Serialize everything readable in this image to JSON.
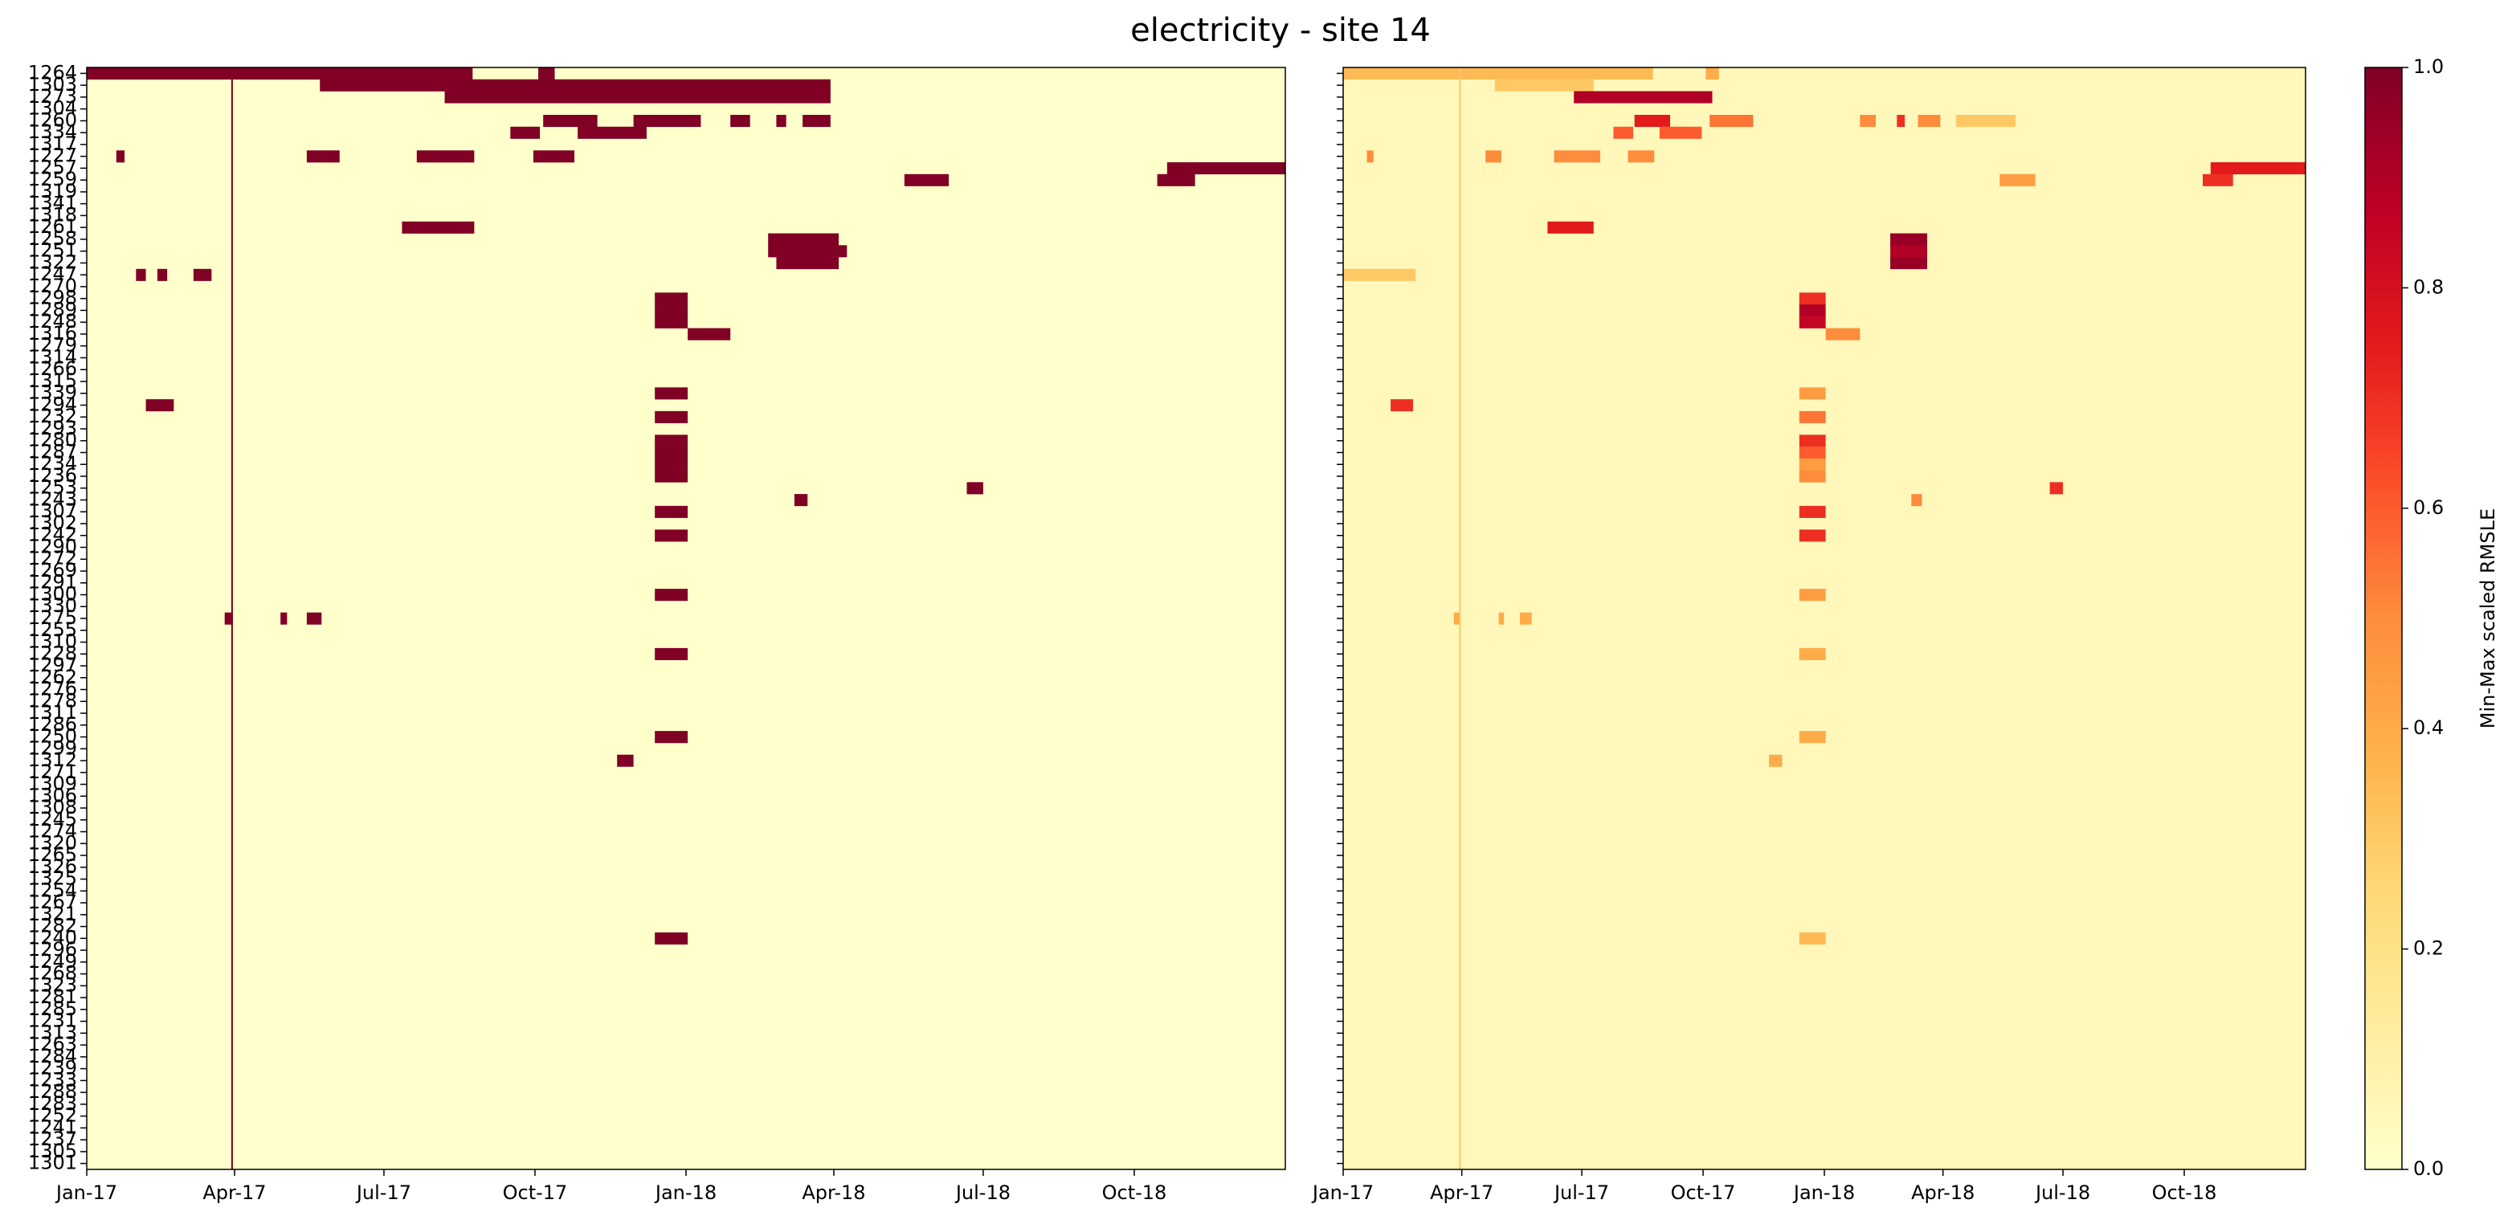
{
  "chart_data": [
    {
      "type": "heatmap",
      "title": "electricity - site 14",
      "rows": [
        "1264",
        "1303",
        "1273",
        "1304",
        "1260",
        "1334",
        "1317",
        "1227",
        "1257",
        "1259",
        "1319",
        "1341",
        "1318",
        "1261",
        "1258",
        "1251",
        "1322",
        "1247",
        "1270",
        "1298",
        "1289",
        "1248",
        "1316",
        "1279",
        "1314",
        "1266",
        "1315",
        "1339",
        "1294",
        "1232",
        "1293",
        "1280",
        "1287",
        "1234",
        "1236",
        "1253",
        "1243",
        "1307",
        "1302",
        "1242",
        "1290",
        "1272",
        "1269",
        "1291",
        "1300",
        "1330",
        "1275",
        "1255",
        "1310",
        "1228",
        "1297",
        "1262",
        "1276",
        "1278",
        "1311",
        "1286",
        "1250",
        "1299",
        "1312",
        "1271",
        "1309",
        "1306",
        "1308",
        "1245",
        "1274",
        "1320",
        "1265",
        "1326",
        "1325",
        "1254",
        "1267",
        "1321",
        "1282",
        "1240",
        "1296",
        "1249",
        "1268",
        "1323",
        "1281",
        "1285",
        "1231",
        "1313",
        "1263",
        "1284",
        "1239",
        "1233",
        "1288",
        "1283",
        "1252",
        "1241",
        "1237",
        "1305",
        "1301"
      ],
      "xlim": [
        0,
        730
      ],
      "xticks": [
        {
          "value": 0,
          "label": "Jan-17"
        },
        {
          "value": 90,
          "label": "Apr-17"
        },
        {
          "value": 181,
          "label": "Jul-17"
        },
        {
          "value": 273,
          "label": "Oct-17"
        },
        {
          "value": 365,
          "label": "Jan-18"
        },
        {
          "value": 455,
          "label": "Apr-18"
        },
        {
          "value": 546,
          "label": "Jul-18"
        },
        {
          "value": 638,
          "label": "Oct-18"
        }
      ],
      "colormap": [
        "#ffffcc",
        "#ffeda0",
        "#fed976",
        "#feb24c",
        "#fd8d3c",
        "#fc4e2a",
        "#e31a1c",
        "#bd0026",
        "#800026"
      ],
      "vlim": [
        0,
        1
      ],
      "background": 0,
      "columns": [
        [
          88,
          89,
          1
        ]
      ],
      "cells": [
        [
          [
            0,
            235,
            1
          ],
          [
            275,
            285,
            1
          ]
        ],
        [
          [
            142,
            453,
            1
          ]
        ],
        [
          [
            218,
            453,
            1
          ]
        ],
        [],
        [
          [
            278,
            311,
            1
          ],
          [
            333,
            374,
            1
          ],
          [
            392,
            404,
            1
          ],
          [
            420,
            426,
            1
          ],
          [
            436,
            453,
            1
          ]
        ],
        [
          [
            258,
            276,
            1
          ],
          [
            299,
            341,
            1
          ]
        ],
        [],
        [
          [
            18,
            23,
            1
          ],
          [
            134,
            154,
            1
          ],
          [
            201,
            236,
            1
          ],
          [
            272,
            297,
            1
          ]
        ],
        [
          [
            658,
            730,
            1
          ]
        ],
        [
          [
            498,
            525,
            1
          ],
          [
            652,
            675,
            1
          ]
        ],
        [],
        [],
        [],
        [
          [
            192,
            236,
            1
          ]
        ],
        [
          [
            415,
            458,
            1
          ]
        ],
        [
          [
            415,
            463,
            1
          ]
        ],
        [
          [
            420,
            458,
            1
          ]
        ],
        [
          [
            30,
            36,
            1
          ],
          [
            43,
            49,
            1
          ],
          [
            65,
            76,
            1
          ]
        ],
        [],
        [
          [
            346,
            366,
            1
          ]
        ],
        [
          [
            346,
            366,
            1
          ]
        ],
        [
          [
            346,
            366,
            1
          ]
        ],
        [
          [
            366,
            392,
            1
          ]
        ],
        [],
        [],
        [],
        [],
        [
          [
            346,
            366,
            1
          ]
        ],
        [
          [
            36,
            53,
            1
          ]
        ],
        [
          [
            346,
            366,
            1
          ]
        ],
        [],
        [
          [
            346,
            366,
            1
          ]
        ],
        [
          [
            346,
            366,
            1
          ]
        ],
        [
          [
            346,
            366,
            1
          ]
        ],
        [
          [
            346,
            366,
            1
          ]
        ],
        [
          [
            536,
            546,
            1
          ]
        ],
        [
          [
            431,
            439,
            1
          ]
        ],
        [
          [
            346,
            366,
            1
          ]
        ],
        [],
        [
          [
            346,
            366,
            1
          ]
        ],
        [],
        [],
        [],
        [],
        [
          [
            346,
            366,
            1
          ]
        ],
        [],
        [
          [
            84,
            89,
            1
          ],
          [
            118,
            122,
            1
          ],
          [
            134,
            143,
            1
          ]
        ],
        [],
        [],
        [
          [
            346,
            366,
            1
          ]
        ],
        [],
        [],
        [],
        [],
        [],
        [],
        [
          [
            346,
            366,
            1
          ]
        ],
        [],
        [
          [
            323,
            333,
            1
          ]
        ],
        [],
        [],
        [],
        [],
        [],
        [],
        [],
        [],
        [],
        [],
        [],
        [],
        [],
        [],
        [
          [
            346,
            366,
            1
          ]
        ],
        [],
        [],
        [],
        [],
        [],
        [],
        [],
        [],
        [],
        [],
        [],
        [],
        [],
        [],
        [],
        [],
        [],
        [],
        []
      ]
    },
    {
      "type": "heatmap",
      "xlim": [
        0,
        730
      ],
      "xticks": [
        {
          "value": 0,
          "label": "Jan-17"
        },
        {
          "value": 90,
          "label": "Apr-17"
        },
        {
          "value": 181,
          "label": "Jul-17"
        },
        {
          "value": 273,
          "label": "Oct-17"
        },
        {
          "value": 365,
          "label": "Jan-18"
        },
        {
          "value": 455,
          "label": "Apr-18"
        },
        {
          "value": 546,
          "label": "Jul-18"
        },
        {
          "value": 638,
          "label": "Oct-18"
        }
      ],
      "colormap": [
        "#ffffcc",
        "#ffeda0",
        "#fed976",
        "#feb24c",
        "#fd8d3c",
        "#fc4e2a",
        "#e31a1c",
        "#bd0026",
        "#800026"
      ],
      "vlim": [
        0,
        1
      ],
      "background": 0.05,
      "columns": [
        [
          88,
          89,
          0.3
        ]
      ],
      "colorbar": {
        "label": "Min-Max scaled RMSLE",
        "ticks": [
          {
            "value": 0,
            "label": "0.0"
          },
          {
            "value": 0.2,
            "label": "0.2"
          },
          {
            "value": 0.4,
            "label": "0.4"
          },
          {
            "value": 0.6,
            "label": "0.6"
          },
          {
            "value": 0.8,
            "label": "0.8"
          },
          {
            "value": 1,
            "label": "1.0"
          }
        ]
      },
      "cells": [
        [
          [
            0,
            235,
            0.35
          ],
          [
            275,
            285,
            0.4
          ]
        ],
        [
          [
            115,
            190,
            0.3
          ]
        ],
        [
          [
            175,
            280,
            0.9
          ]
        ],
        [],
        [
          [
            221,
            248,
            0.75
          ],
          [
            278,
            311,
            0.55
          ],
          [
            392,
            404,
            0.5
          ],
          [
            420,
            426,
            0.7
          ],
          [
            436,
            453,
            0.5
          ],
          [
            465,
            510,
            0.3
          ]
        ],
        [
          [
            205,
            220,
            0.6
          ],
          [
            240,
            272,
            0.6
          ]
        ],
        [],
        [
          [
            18,
            23,
            0.5
          ],
          [
            108,
            120,
            0.5
          ],
          [
            160,
            195,
            0.5
          ],
          [
            216,
            236,
            0.5
          ]
        ],
        [
          [
            658,
            730,
            0.75
          ]
        ],
        [
          [
            498,
            525,
            0.45
          ],
          [
            652,
            675,
            0.7
          ]
        ],
        [],
        [],
        [],
        [
          [
            155,
            190,
            0.75
          ]
        ],
        [
          [
            415,
            443,
            0.95
          ]
        ],
        [
          [
            415,
            443,
            0.9
          ]
        ],
        [
          [
            415,
            443,
            0.95
          ]
        ],
        [
          [
            0,
            55,
            0.3
          ]
        ],
        [],
        [
          [
            346,
            366,
            0.7
          ]
        ],
        [
          [
            346,
            366,
            0.9
          ]
        ],
        [
          [
            346,
            366,
            0.85
          ]
        ],
        [
          [
            366,
            392,
            0.5
          ]
        ],
        [],
        [],
        [],
        [],
        [
          [
            346,
            366,
            0.45
          ]
        ],
        [
          [
            36,
            53,
            0.7
          ]
        ],
        [
          [
            346,
            366,
            0.55
          ]
        ],
        [],
        [
          [
            346,
            366,
            0.7
          ]
        ],
        [
          [
            346,
            366,
            0.6
          ]
        ],
        [
          [
            346,
            366,
            0.45
          ]
        ],
        [
          [
            346,
            366,
            0.5
          ]
        ],
        [
          [
            536,
            546,
            0.7
          ]
        ],
        [
          [
            431,
            439,
            0.5
          ]
        ],
        [
          [
            346,
            366,
            0.7
          ]
        ],
        [],
        [
          [
            346,
            366,
            0.7
          ]
        ],
        [],
        [],
        [],
        [],
        [
          [
            346,
            366,
            0.45
          ]
        ],
        [],
        [
          [
            84,
            89,
            0.4
          ],
          [
            118,
            122,
            0.4
          ],
          [
            134,
            143,
            0.4
          ]
        ],
        [],
        [],
        [
          [
            346,
            366,
            0.4
          ]
        ],
        [],
        [],
        [],
        [],
        [],
        [],
        [
          [
            346,
            366,
            0.4
          ]
        ],
        [],
        [
          [
            323,
            333,
            0.4
          ]
        ],
        [],
        [],
        [],
        [],
        [],
        [],
        [],
        [],
        [],
        [],
        [],
        [],
        [],
        [],
        [
          [
            346,
            366,
            0.35
          ]
        ],
        [],
        [],
        [],
        [],
        [],
        [],
        [],
        [],
        [],
        [],
        [],
        [],
        [],
        [],
        [],
        [],
        [],
        [],
        []
      ]
    }
  ]
}
